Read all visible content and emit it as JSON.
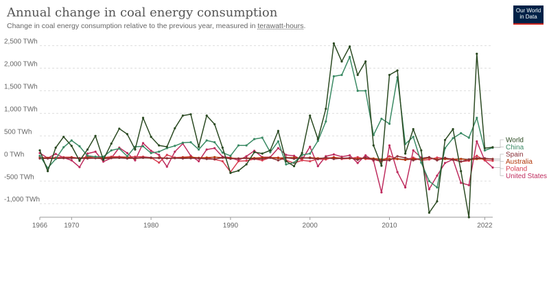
{
  "header": {
    "title": "Annual change in coal energy consumption",
    "subtitle_text": "Change in coal energy consumption relative to the previous year, measured in ",
    "subtitle_link": "terawatt-hours",
    "subtitle_end": ".",
    "logo_line1": "Our World",
    "logo_line2": "in Data"
  },
  "chart_data": {
    "type": "line",
    "title": "Annual change in coal energy consumption",
    "ylim": [
      -1300,
      2600
    ],
    "grid": true,
    "legend_position": "right",
    "y_ticks": [
      {
        "value": 2500,
        "label": "2,500 TWh"
      },
      {
        "value": 2000,
        "label": "2,000 TWh"
      },
      {
        "value": 1500,
        "label": "1,500 TWh"
      },
      {
        "value": 1000,
        "label": "1,000 TWh"
      },
      {
        "value": 500,
        "label": "500 TWh"
      },
      {
        "value": 0,
        "label": "0 TWh"
      },
      {
        "value": -500,
        "label": "-500 TWh"
      },
      {
        "value": -1000,
        "label": "-1,000 TWh"
      }
    ],
    "x_ticks": [
      {
        "value": 1966,
        "label": "1966"
      },
      {
        "value": 1970,
        "label": "1970"
      },
      {
        "value": 1980,
        "label": "1980"
      },
      {
        "value": 1990,
        "label": "1990"
      },
      {
        "value": 2000,
        "label": "2000"
      },
      {
        "value": 2010,
        "label": "2010"
      },
      {
        "value": 2022,
        "label": "2022"
      }
    ],
    "x": [
      1966,
      1967,
      1968,
      1969,
      1970,
      1971,
      1972,
      1973,
      1974,
      1975,
      1976,
      1977,
      1978,
      1979,
      1980,
      1981,
      1982,
      1983,
      1984,
      1985,
      1986,
      1987,
      1988,
      1989,
      1990,
      1991,
      1992,
      1993,
      1994,
      1995,
      1996,
      1997,
      1998,
      1999,
      2000,
      2001,
      2002,
      2003,
      2004,
      2005,
      2006,
      2007,
      2008,
      2009,
      2010,
      2011,
      2012,
      2013,
      2014,
      2015,
      2016,
      2017,
      2018,
      2019,
      2020,
      2021,
      2022,
      2023
    ],
    "series": [
      {
        "name": "World",
        "color": "#2b4a22",
        "values": [
          180,
          -280,
          240,
          480,
          280,
          -50,
          200,
          500,
          -30,
          330,
          660,
          540,
          200,
          900,
          480,
          290,
          260,
          670,
          950,
          980,
          260,
          950,
          760,
          240,
          -320,
          -270,
          -130,
          140,
          110,
          180,
          610,
          -60,
          -170,
          120,
          950,
          430,
          1100,
          2550,
          2150,
          2480,
          1850,
          2150,
          290,
          -160,
          1850,
          1950,
          110,
          650,
          180,
          -1200,
          -950,
          410,
          650,
          -280,
          -1300,
          2320,
          230,
          250
        ]
      },
      {
        "name": "China",
        "color": "#3a8a64",
        "values": [
          60,
          -210,
          -10,
          250,
          400,
          270,
          60,
          40,
          40,
          180,
          220,
          50,
          260,
          270,
          120,
          150,
          230,
          280,
          350,
          360,
          200,
          400,
          360,
          130,
          60,
          290,
          290,
          430,
          460,
          140,
          380,
          -130,
          -90,
          80,
          110,
          390,
          820,
          1820,
          1850,
          2250,
          1500,
          1500,
          520,
          880,
          770,
          1800,
          320,
          480,
          -90,
          -500,
          -640,
          230,
          450,
          560,
          460,
          900,
          180,
          240
        ]
      },
      {
        "name": "Spain",
        "color": "#883039",
        "values": [
          0,
          0,
          0,
          10,
          10,
          5,
          0,
          10,
          -5,
          10,
          15,
          0,
          10,
          15,
          20,
          10,
          5,
          10,
          0,
          5,
          5,
          -10,
          -15,
          20,
          -5,
          0,
          5,
          -10,
          -5,
          15,
          -40,
          20,
          -5,
          20,
          10,
          -15,
          25,
          -10,
          5,
          15,
          -30,
          25,
          -25,
          -45,
          -40,
          50,
          15,
          -40,
          5,
          30,
          -40,
          15,
          -30,
          -70,
          -20,
          10,
          5,
          -15
        ]
      },
      {
        "name": "Australia",
        "color": "#b13507",
        "values": [
          10,
          15,
          5,
          10,
          20,
          0,
          20,
          10,
          10,
          20,
          15,
          30,
          0,
          20,
          10,
          20,
          5,
          10,
          20,
          30,
          15,
          20,
          30,
          20,
          10,
          0,
          10,
          10,
          20,
          20,
          10,
          20,
          20,
          10,
          20,
          5,
          10,
          20,
          10,
          5,
          -5,
          10,
          0,
          -20,
          -10,
          -10,
          -30,
          -10,
          -20,
          20,
          -20,
          -10,
          -20,
          -10,
          -30,
          -10,
          -5,
          -10
        ]
      },
      {
        "name": "Poland",
        "color": "#d73c50",
        "values": [
          30,
          10,
          20,
          30,
          30,
          10,
          30,
          40,
          20,
          40,
          40,
          30,
          40,
          40,
          20,
          -90,
          80,
          20,
          30,
          40,
          0,
          20,
          -20,
          -60,
          -300,
          -60,
          -50,
          -10,
          -40,
          20,
          20,
          -40,
          -100,
          -40,
          -60,
          -10,
          -20,
          30,
          -10,
          0,
          30,
          -10,
          -20,
          -70,
          50,
          -10,
          -30,
          20,
          -40,
          -20,
          20,
          0,
          -10,
          -70,
          -50,
          60,
          -40,
          -50
        ]
      },
      {
        "name": "United States",
        "color": "#be2c5e",
        "values": [
          120,
          10,
          100,
          20,
          -40,
          -190,
          110,
          150,
          -70,
          10,
          240,
          120,
          -40,
          340,
          170,
          80,
          -180,
          150,
          330,
          60,
          -60,
          200,
          230,
          40,
          20,
          -40,
          50,
          170,
          30,
          30,
          230,
          80,
          60,
          -30,
          260,
          -170,
          50,
          90,
          40,
          70,
          -100,
          70,
          -50,
          -750,
          290,
          -300,
          -640,
          180,
          20,
          -680,
          -380,
          -100,
          -20,
          -540,
          -590,
          380,
          -40,
          -200
        ]
      }
    ],
    "legend": [
      {
        "name": "World",
        "color": "#2b4a22"
      },
      {
        "name": "China",
        "color": "#3a8a64"
      },
      {
        "name": "Spain",
        "color": "#883039"
      },
      {
        "name": "Australia",
        "color": "#b13507"
      },
      {
        "name": "Poland",
        "color": "#d73c50"
      },
      {
        "name": "United States",
        "color": "#be2c5e"
      }
    ]
  }
}
